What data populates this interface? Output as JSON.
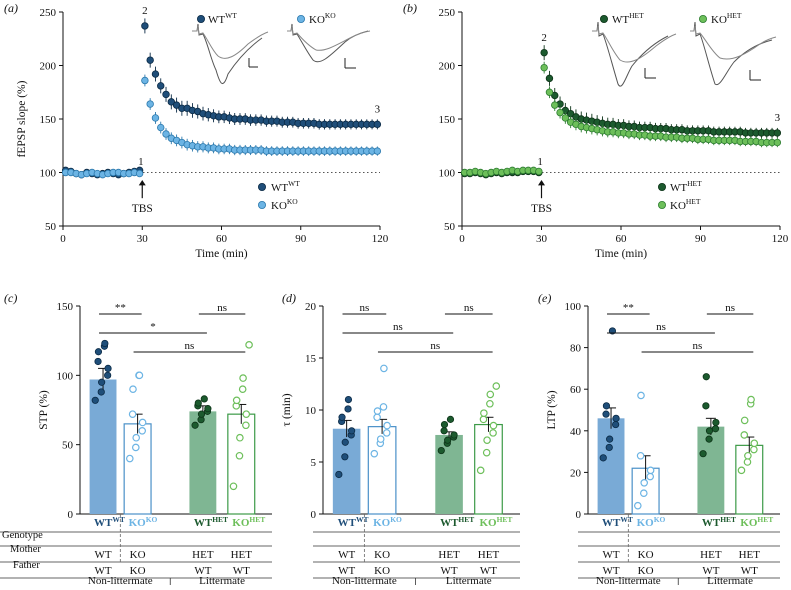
{
  "colors": {
    "wt_wt": "#1f4e79",
    "ko_ko": "#6cb4e4",
    "wt_het": "#1c5a2e",
    "ko_het": "#6dbf5a",
    "bar_wt": "#79aad6",
    "bar_het": "#7fb693",
    "bar_ko_edge": "#4a90c8",
    "bar_kohet_edge": "#3c9a47"
  },
  "time_axis": {
    "xlabel": "Time (min)",
    "ylabel": "fEPSP slope (%)",
    "x_ticks": [
      "0",
      "30",
      "60",
      "90",
      "120"
    ],
    "y_ticks": [
      "50",
      "100",
      "150",
      "200",
      "250"
    ]
  },
  "bar_categories": {
    "genotype": [
      {
        "main": "WT",
        "sup": "WT"
      },
      {
        "main": "KO",
        "sup": "KO"
      },
      {
        "main": "WT",
        "sup": "HET"
      },
      {
        "main": "KO",
        "sup": "HET"
      }
    ],
    "row_labels": [
      "Genotype",
      "Mother",
      "Father"
    ],
    "mother": [
      "WT",
      "KO",
      "HET",
      "HET"
    ],
    "father": [
      "WT",
      "KO",
      "WT",
      "WT"
    ],
    "groups": [
      "Non-littermate",
      "Littermate"
    ]
  },
  "chart_data": [
    {
      "panel": "(a)",
      "type": "scatter",
      "title": "",
      "xlabel": "Time (min)",
      "ylabel": "fEPSP slope (%)",
      "xlim": [
        0,
        120
      ],
      "ylim": [
        50,
        250
      ],
      "baseline": 100,
      "arrow_label": "TBS",
      "arrow_x": 30,
      "point_labels": [
        "1",
        "2",
        "3"
      ],
      "insets": [
        {
          "main": "WT",
          "sup": "WT"
        },
        {
          "main": "KO",
          "sup": "KO"
        }
      ],
      "series": [
        {
          "name": "WT",
          "sup": "WT",
          "color_key": "wt_wt",
          "x": [
            1,
            3,
            5,
            7,
            9,
            11,
            13,
            15,
            17,
            19,
            21,
            23,
            25,
            27,
            29,
            31,
            33,
            35,
            37,
            39,
            41,
            43,
            45,
            47,
            49,
            51,
            53,
            55,
            57,
            59,
            61,
            63,
            65,
            67,
            69,
            71,
            73,
            75,
            77,
            79,
            81,
            83,
            85,
            87,
            89,
            91,
            93,
            95,
            97,
            99,
            101,
            103,
            105,
            107,
            109,
            111,
            113,
            115,
            117,
            119
          ],
          "y": [
            102,
            101,
            99,
            98,
            100,
            99,
            98,
            99,
            100,
            99,
            98,
            99,
            100,
            101,
            102,
            237,
            205,
            192,
            181,
            173,
            166,
            163,
            160,
            160,
            158,
            157,
            155,
            154,
            153,
            152,
            152,
            151,
            150,
            150,
            150,
            149,
            149,
            149,
            148,
            148,
            148,
            147,
            147,
            147,
            146,
            146,
            146,
            146,
            145,
            145,
            145,
            145,
            145,
            145,
            145,
            145,
            145,
            145,
            145,
            145
          ]
        },
        {
          "name": "KO",
          "sup": "KO",
          "color_key": "ko_ko",
          "x": [
            1,
            3,
            5,
            7,
            9,
            11,
            13,
            15,
            17,
            19,
            21,
            23,
            25,
            27,
            29,
            31,
            33,
            35,
            37,
            39,
            41,
            43,
            45,
            47,
            49,
            51,
            53,
            55,
            57,
            59,
            61,
            63,
            65,
            67,
            69,
            71,
            73,
            75,
            77,
            79,
            81,
            83,
            85,
            87,
            89,
            91,
            93,
            95,
            97,
            99,
            101,
            103,
            105,
            107,
            109,
            111,
            113,
            115,
            117,
            119
          ],
          "y": [
            100,
            100,
            99,
            98,
            99,
            100,
            99,
            98,
            99,
            100,
            100,
            99,
            99,
            100,
            99,
            186,
            164,
            151,
            142,
            136,
            132,
            130,
            128,
            126,
            125,
            124,
            124,
            123,
            123,
            122,
            122,
            122,
            121,
            121,
            121,
            121,
            121,
            121,
            120,
            120,
            120,
            120,
            120,
            120,
            120,
            120,
            120,
            120,
            120,
            120,
            120,
            120,
            120,
            120,
            120,
            120,
            120,
            120,
            120,
            120
          ]
        }
      ],
      "legend": "bottom-right"
    },
    {
      "panel": "(b)",
      "type": "scatter",
      "title": "",
      "xlabel": "Time (min)",
      "ylabel": "",
      "xlim": [
        0,
        120
      ],
      "ylim": [
        50,
        250
      ],
      "baseline": 100,
      "arrow_label": "TBS",
      "arrow_x": 30,
      "point_labels": [
        "1",
        "2",
        "3"
      ],
      "insets": [
        {
          "main": "WT",
          "sup": "HET"
        },
        {
          "main": "KO",
          "sup": "HET"
        }
      ],
      "series": [
        {
          "name": "WT",
          "sup": "HET",
          "color_key": "wt_het",
          "x": [
            1,
            3,
            5,
            7,
            9,
            11,
            13,
            15,
            17,
            19,
            21,
            23,
            25,
            27,
            29,
            31,
            33,
            35,
            37,
            39,
            41,
            43,
            45,
            47,
            49,
            51,
            53,
            55,
            57,
            59,
            61,
            63,
            65,
            67,
            69,
            71,
            73,
            75,
            77,
            79,
            81,
            83,
            85,
            87,
            89,
            91,
            93,
            95,
            97,
            99,
            101,
            103,
            105,
            107,
            109,
            111,
            113,
            115,
            117,
            119
          ],
          "y": [
            99,
            99,
            100,
            99,
            98,
            99,
            100,
            99,
            100,
            100,
            100,
            101,
            101,
            101,
            100,
            212,
            188,
            172,
            164,
            158,
            155,
            152,
            150,
            149,
            148,
            147,
            146,
            145,
            145,
            144,
            144,
            143,
            143,
            142,
            142,
            142,
            141,
            141,
            141,
            140,
            140,
            140,
            139,
            139,
            139,
            139,
            139,
            138,
            138,
            138,
            138,
            138,
            138,
            137,
            137,
            137,
            137,
            137,
            137,
            137
          ]
        },
        {
          "name": "KO",
          "sup": "HET",
          "color_key": "ko_het",
          "x": [
            1,
            3,
            5,
            7,
            9,
            11,
            13,
            15,
            17,
            19,
            21,
            23,
            25,
            27,
            29,
            31,
            33,
            35,
            37,
            39,
            41,
            43,
            45,
            47,
            49,
            51,
            53,
            55,
            57,
            59,
            61,
            63,
            65,
            67,
            69,
            71,
            73,
            75,
            77,
            79,
            81,
            83,
            85,
            87,
            89,
            91,
            93,
            95,
            97,
            99,
            101,
            103,
            105,
            107,
            109,
            111,
            113,
            115,
            117,
            119
          ],
          "y": [
            100,
            100,
            101,
            100,
            99,
            100,
            101,
            100,
            101,
            102,
            101,
            102,
            102,
            102,
            101,
            198,
            175,
            163,
            156,
            151,
            147,
            145,
            143,
            142,
            141,
            140,
            139,
            138,
            138,
            137,
            137,
            136,
            136,
            135,
            135,
            134,
            134,
            134,
            133,
            133,
            133,
            132,
            132,
            132,
            131,
            131,
            131,
            130,
            130,
            130,
            130,
            130,
            129,
            129,
            129,
            129,
            128,
            128,
            128,
            128
          ]
        }
      ],
      "legend": "bottom-right"
    },
    {
      "panel": "(c)",
      "type": "bar",
      "ylabel": "STP (%)",
      "ylim": [
        0,
        150
      ],
      "yticks": [
        "0",
        "50",
        "100",
        "150"
      ],
      "means": [
        97,
        65,
        74,
        72
      ],
      "sem": [
        8,
        7,
        4,
        7
      ],
      "points": [
        [
          82,
          88,
          95,
          100,
          105,
          110,
          117,
          121,
          123
        ],
        [
          40,
          48,
          55,
          60,
          66,
          72,
          90,
          100,
          100
        ],
        [
          64,
          68,
          72,
          74,
          76,
          78,
          80,
          83
        ],
        [
          20,
          42,
          55,
          64,
          72,
          78,
          82,
          90,
          98,
          122
        ]
      ],
      "significance": [
        {
          "pair": [
            0,
            1
          ],
          "label": "**"
        },
        {
          "pair": [
            2,
            3
          ],
          "label": "ns"
        },
        {
          "pair": [
            0,
            2
          ],
          "label": "*"
        },
        {
          "pair": [
            1,
            3
          ],
          "label": "ns"
        }
      ]
    },
    {
      "panel": "(d)",
      "type": "bar",
      "ylabel": "τ (min)",
      "ylim": [
        0,
        20
      ],
      "yticks": [
        "0",
        "5",
        "10",
        "15",
        "20"
      ],
      "means": [
        8.2,
        8.4,
        7.6,
        8.6
      ],
      "sem": [
        0.8,
        0.7,
        0.3,
        0.7
      ],
      "points": [
        [
          3.8,
          5.5,
          6.9,
          7.6,
          8.0,
          8.9,
          9.3,
          10.1,
          11.0
        ],
        [
          5.8,
          6.8,
          7.2,
          7.8,
          8.5,
          9.3,
          9.9,
          10.3,
          14.0
        ],
        [
          6.1,
          6.8,
          7.1,
          7.4,
          7.6,
          8.0,
          8.6,
          9.1
        ],
        [
          4.2,
          5.9,
          7.1,
          7.8,
          8.5,
          9.1,
          9.7,
          10.6,
          11.5,
          12.3
        ]
      ],
      "significance": [
        {
          "pair": [
            0,
            1
          ],
          "label": "ns"
        },
        {
          "pair": [
            2,
            3
          ],
          "label": "ns"
        },
        {
          "pair": [
            0,
            2
          ],
          "label": "ns"
        },
        {
          "pair": [
            1,
            3
          ],
          "label": "ns"
        }
      ]
    },
    {
      "panel": "(e)",
      "type": "bar",
      "ylabel": "LTP (%)",
      "ylim": [
        0,
        100
      ],
      "yticks": [
        "0",
        "20",
        "40",
        "60",
        "80",
        "100"
      ],
      "means": [
        46,
        22,
        42,
        33
      ],
      "sem": [
        5,
        6,
        4,
        4
      ],
      "points": [
        [
          27,
          32,
          36,
          43,
          46,
          48,
          52,
          88
        ],
        [
          4,
          10,
          15,
          18,
          21,
          28,
          57
        ],
        [
          29,
          36,
          40,
          41,
          44,
          52,
          66
        ],
        [
          21,
          25,
          28,
          31,
          34,
          38,
          45,
          53,
          55
        ]
      ],
      "significance": [
        {
          "pair": [
            0,
            1
          ],
          "label": "**"
        },
        {
          "pair": [
            2,
            3
          ],
          "label": "ns"
        },
        {
          "pair": [
            0,
            2
          ],
          "label": "ns"
        },
        {
          "pair": [
            1,
            3
          ],
          "label": "ns"
        }
      ]
    }
  ]
}
